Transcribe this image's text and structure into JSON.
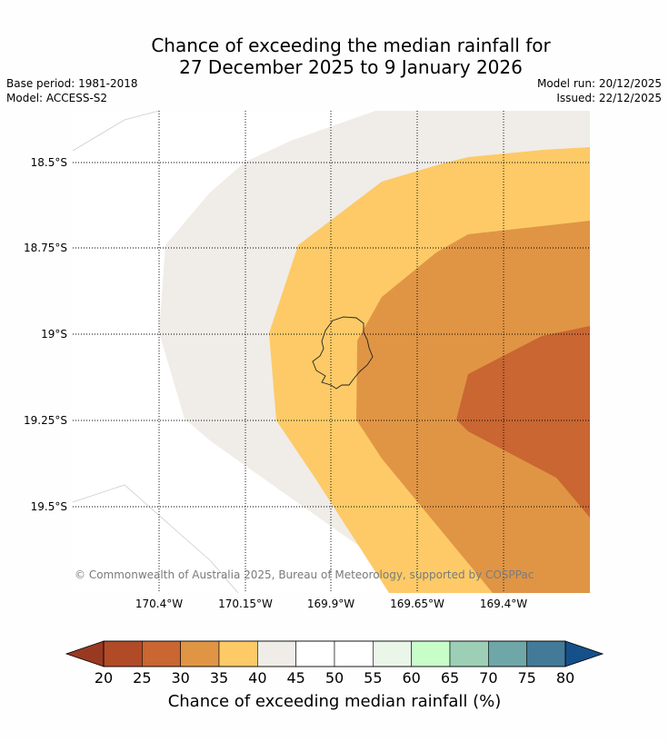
{
  "title": {
    "line1": "Chance of exceeding the median rainfall for",
    "line2": "27 December 2025 to 9 January 2026"
  },
  "meta": {
    "base_period": "Base period: 1981-2018",
    "model": "Model: ACCESS-S2",
    "model_run": "Model run: 20/12/2025",
    "issued": "Issued: 22/12/2025"
  },
  "map": {
    "lat_labels": [
      "18.5°S",
      "18.75°S",
      "19°S",
      "19.25°S",
      "19.5°S"
    ],
    "lon_labels": [
      "170.4°W",
      "170.15°W",
      "169.9°W",
      "169.65°W",
      "169.4°W"
    ],
    "copyright": "© Commonwealth of Australia 2025, Bureau of Meteorology, supported by COSPPac",
    "region_colors": {
      "band_40_45": "#f0ece7",
      "band_35_40": "#fdca67",
      "band_30_35": "#e09545",
      "band_25_30": "#c96632"
    }
  },
  "colorbar": {
    "title": "Chance of exceeding median rainfall (%)",
    "ticks": [
      "20",
      "25",
      "30",
      "35",
      "40",
      "45",
      "50",
      "55",
      "60",
      "65",
      "70",
      "75",
      "80"
    ],
    "low_extend_color": "#993922",
    "high_extend_color": "#16508a",
    "colors": [
      "#b14b27",
      "#c96632",
      "#e09545",
      "#fdca67",
      "#f0ece7",
      "#ffffff",
      "#ffffff",
      "#eaf6e8",
      "#c8fdca",
      "#9dcfb6",
      "#6fa6a8",
      "#437a98"
    ]
  }
}
